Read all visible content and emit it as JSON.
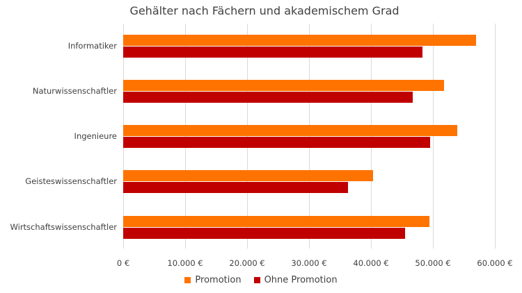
{
  "chart_data": {
    "type": "bar",
    "orientation": "horizontal",
    "title": "Gehälter nach Fächern und akademischem Grad",
    "categories": [
      "Informatiker",
      "Naturwissenschaftler",
      "Ingenieure",
      "Geisteswissenschaftler",
      "Wirtschaftswissenschaftler"
    ],
    "series": [
      {
        "name": "Promotion",
        "color": "#FF7300",
        "values": [
          57000,
          51800,
          53900,
          40300,
          49400
        ]
      },
      {
        "name": "Ohne Promotion",
        "color": "#C00000",
        "values": [
          48300,
          46700,
          49600,
          36300,
          45500
        ]
      }
    ],
    "xlabel": "",
    "ylabel": "",
    "xlim": [
      0,
      60000
    ],
    "x_ticks": [
      "0 €",
      "10.000 €",
      "20.000 €",
      "30.000 €",
      "40.000 €",
      "50.000 €",
      "60.000 €"
    ],
    "grid": true,
    "legend_position": "bottom"
  },
  "title": "Gehälter nach Fächern und akademischem Grad",
  "legend": [
    {
      "label": "Promotion",
      "color": "#FF7300"
    },
    {
      "label": "Ohne Promotion",
      "color": "#C00000"
    }
  ]
}
